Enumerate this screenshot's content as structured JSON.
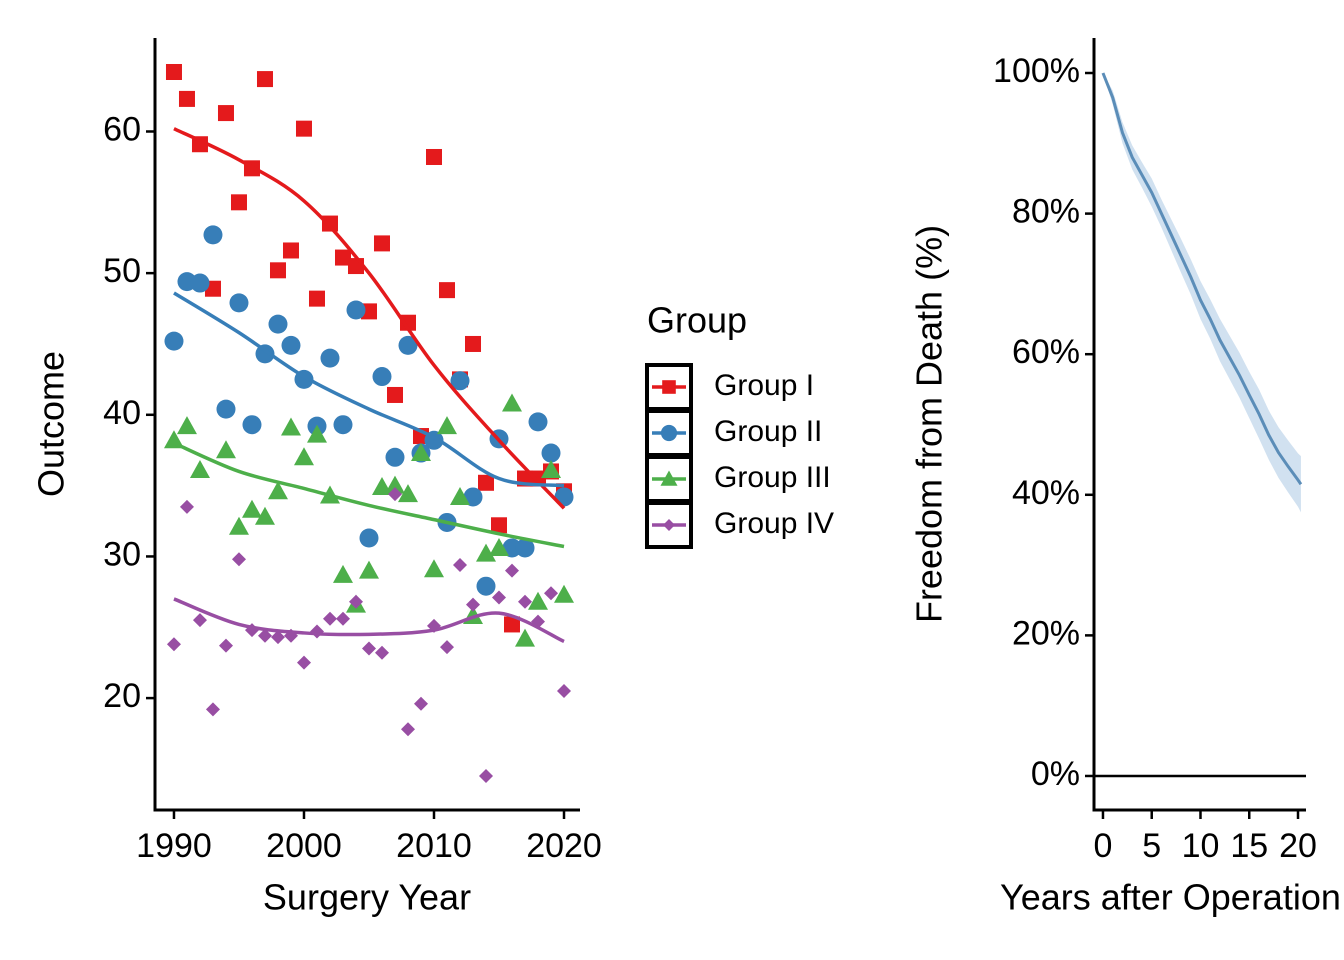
{
  "chart_data": [
    {
      "type": "scatter",
      "xlabel": "Surgery Year",
      "ylabel": "Outcome",
      "legend_title": "Group",
      "legend": "right",
      "xlim": [
        1988.54,
        2021.23
      ],
      "xticks": [
        1990,
        2000,
        2010,
        2020
      ],
      "ylim": [
        12.1,
        66.6
      ],
      "yticks": [
        20,
        30,
        40,
        50,
        60
      ],
      "x": [
        1990,
        1991,
        1992,
        1993,
        1994,
        1995,
        1996,
        1997,
        1998,
        1999,
        2000,
        2001,
        2002,
        2003,
        2004,
        2005,
        2006,
        2007,
        2008,
        2009,
        2010,
        2011,
        2012,
        2013,
        2014,
        2015,
        2016,
        2017,
        2018,
        2019,
        2020
      ],
      "smooth_x": [
        1990,
        1995,
        2000,
        2005,
        2010,
        2015,
        2020
      ],
      "series": [
        {
          "name": "Group I",
          "color": "#e41a1c",
          "marker": "square",
          "values": [
            64.2,
            62.3,
            59.1,
            48.9,
            61.3,
            55,
            57.4,
            63.7,
            50.2,
            51.6,
            60.2,
            48.2,
            53.5,
            51.1,
            50.5,
            47.3,
            52.1,
            41.4,
            46.5,
            38.5,
            58.2,
            48.8,
            42.5,
            45,
            35.2,
            32.2,
            25.2,
            35.5,
            35.5,
            36,
            34.6
          ],
          "smooth": [
            60.2,
            58,
            55.1,
            50,
            43.5,
            38.2,
            33.4
          ]
        },
        {
          "name": "Group II",
          "color": "#377eb8",
          "marker": "circle",
          "values": [
            45.2,
            49.4,
            49.3,
            52.7,
            40.4,
            47.9,
            39.3,
            44.3,
            46.4,
            44.9,
            42.5,
            39.2,
            44,
            39.3,
            47.4,
            31.3,
            42.7,
            37,
            44.9,
            37.3,
            38.2,
            32.4,
            42.4,
            34.2,
            27.9,
            38.3,
            30.6,
            30.6,
            39.5,
            37.3,
            34.2
          ],
          "smooth": [
            48.6,
            45.8,
            42.7,
            40.4,
            38.4,
            35.5,
            35
          ]
        },
        {
          "name": "Group III",
          "color": "#4daf4a",
          "marker": "triangle",
          "values": [
            38.2,
            39.2,
            36.1,
            null,
            37.5,
            32.1,
            33.3,
            32.8,
            34.6,
            39.1,
            37,
            38.6,
            34.3,
            28.7,
            26.6,
            29,
            34.9,
            35,
            34.4,
            37.3,
            29.1,
            39.2,
            34.2,
            25.8,
            30.2,
            30.6,
            40.8,
            24.2,
            26.8,
            36.1,
            27.3
          ],
          "smooth": [
            38,
            36,
            34.8,
            33.6,
            32.6,
            31.6,
            30.7
          ]
        },
        {
          "name": "Group IV",
          "color": "#984ea3",
          "marker": "diamond",
          "values": [
            23.8,
            33.5,
            25.5,
            19.2,
            23.7,
            29.8,
            24.8,
            24.4,
            24.3,
            24.4,
            22.5,
            24.7,
            25.6,
            25.6,
            26.8,
            23.5,
            23.2,
            34.4,
            17.8,
            19.6,
            25.1,
            23.6,
            29.4,
            26.6,
            14.5,
            27.1,
            29,
            26.8,
            25.4,
            27.4,
            20.5
          ],
          "smooth": [
            27,
            25.2,
            24.6,
            24.5,
            24.8,
            26,
            24
          ]
        }
      ]
    },
    {
      "type": "survival",
      "xlabel": "Years after Operation",
      "ylabel": "Freedom from Death (%)",
      "color": "#5b8db8",
      "band_color": "#c6d9ec",
      "hline": 0,
      "xlim": [
        -0.92,
        20.82
      ],
      "xticks": [
        0,
        5,
        10,
        15,
        20
      ],
      "ylim": [
        -4.84,
        104.98
      ],
      "yticks": [
        {
          "value": 0,
          "label": "0%"
        },
        {
          "value": 20,
          "label": "20%"
        },
        {
          "value": 40,
          "label": "40%"
        },
        {
          "value": 60,
          "label": "60%"
        },
        {
          "value": 80,
          "label": "80%"
        },
        {
          "value": 100,
          "label": "100%"
        }
      ],
      "x": [
        0,
        1,
        2,
        3,
        4,
        5,
        6,
        7,
        8,
        9,
        10,
        11,
        12,
        13,
        14,
        15,
        16,
        17,
        18,
        19,
        20,
        20.3
      ],
      "survival": [
        100,
        96.5,
        91.5,
        88,
        85.5,
        83,
        80,
        77,
        74,
        71,
        67.7,
        65,
        62,
        59.5,
        57,
        54.2,
        51.5,
        48.5,
        46,
        44,
        42.1,
        41.5
      ],
      "lower": [
        100,
        95.5,
        90,
        86.3,
        83.7,
        81,
        78,
        74.8,
        71.6,
        68.5,
        65,
        62.2,
        59,
        56.4,
        53.8,
        50.9,
        48,
        45,
        42.4,
        40.3,
        38.3,
        37.5
      ],
      "upper": [
        100,
        97.5,
        93,
        89.7,
        87.3,
        85,
        82,
        79.2,
        76.4,
        73.5,
        70.4,
        67.8,
        65,
        62.6,
        60.2,
        57.5,
        55,
        52,
        49.6,
        47.7,
        45.9,
        45.5
      ]
    }
  ]
}
